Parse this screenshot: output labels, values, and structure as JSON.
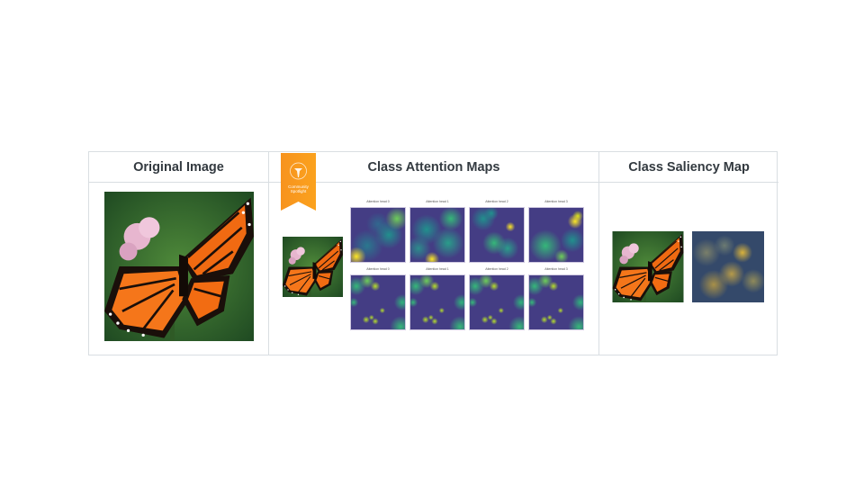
{
  "columns": [
    {
      "title": "Original Image"
    },
    {
      "title": "Class Attention Maps"
    },
    {
      "title": "Class Saliency Map"
    }
  ],
  "badge": {
    "line1": "Community",
    "line2": "Spotlight",
    "color": "#f7931e"
  },
  "attention_heads": {
    "row1": [
      "Attention head 0",
      "Attention head 1",
      "Attention head 2",
      "Attention head 3"
    ],
    "row2": [
      "Attention head 0",
      "Attention head 1",
      "Attention head 2",
      "Attention head 3"
    ]
  },
  "colors": {
    "border": "#d9dee2",
    "header_text": "#333a40",
    "viridis_low": "#443d84",
    "viridis_high": "#fde725"
  }
}
